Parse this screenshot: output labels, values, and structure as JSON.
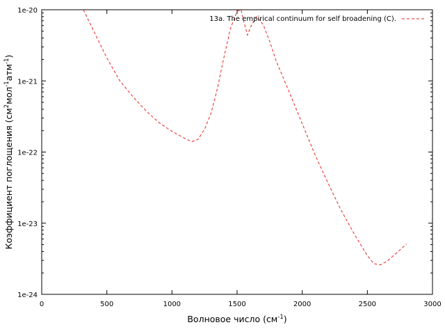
{
  "chart_data": {
    "type": "line",
    "x_axis": {
      "label_parts": [
        "Волновое число (см",
        "-1",
        ")"
      ],
      "min": 0,
      "max": 3000,
      "ticks": [
        0,
        500,
        1000,
        1500,
        2000,
        2500,
        3000
      ],
      "tick_labels": [
        "0",
        "500",
        "1000",
        "1500",
        "2000",
        "2500",
        "3000"
      ]
    },
    "y_axis": {
      "label_parts": [
        "Коэффициент поглощения (см",
        "2",
        "мол",
        "-1",
        "атм",
        "-1",
        ")"
      ],
      "scale": "log",
      "min": 1e-24,
      "max": 1e-20,
      "ticks": [
        1e-24,
        1e-23,
        1e-22,
        1e-21,
        1e-20
      ],
      "tick_labels": [
        "1e-24",
        "1e-23",
        "1e-22",
        "1e-21",
        "1e-20"
      ]
    },
    "grid": false,
    "legend_position": "top-right",
    "series": [
      {
        "name": "13a. The empirical continuum for self broadening (C).",
        "color": "#e8231e",
        "style": "dashed",
        "x": [
          320,
          400,
          500,
          600,
          700,
          800,
          900,
          1000,
          1100,
          1150,
          1200,
          1250,
          1300,
          1350,
          1400,
          1450,
          1500,
          1530,
          1560,
          1580,
          1600,
          1620,
          1650,
          1700,
          1750,
          1800,
          1900,
          2000,
          2100,
          2200,
          2300,
          2400,
          2500,
          2550,
          2600,
          2650,
          2700,
          2750,
          2800
        ],
        "y": [
          1e-20,
          5e-21,
          2.1e-21,
          1e-21,
          6e-22,
          3.8e-22,
          2.6e-22,
          1.95e-22,
          1.55e-22,
          1.4e-22,
          1.5e-22,
          2.1e-22,
          3.5e-22,
          8e-22,
          2.2e-21,
          5.5e-21,
          9.5e-21,
          1e-20,
          6e-21,
          4.4e-21,
          5.5e-21,
          6.5e-21,
          8e-21,
          6.2e-21,
          3.6e-21,
          1.9e-21,
          7e-22,
          2.5e-22,
          9e-23,
          3.6e-23,
          1.5e-23,
          7e-24,
          3.5e-24,
          2.7e-24,
          2.6e-24,
          2.9e-24,
          3.5e-24,
          4.2e-24,
          5.1e-24
        ]
      }
    ]
  }
}
